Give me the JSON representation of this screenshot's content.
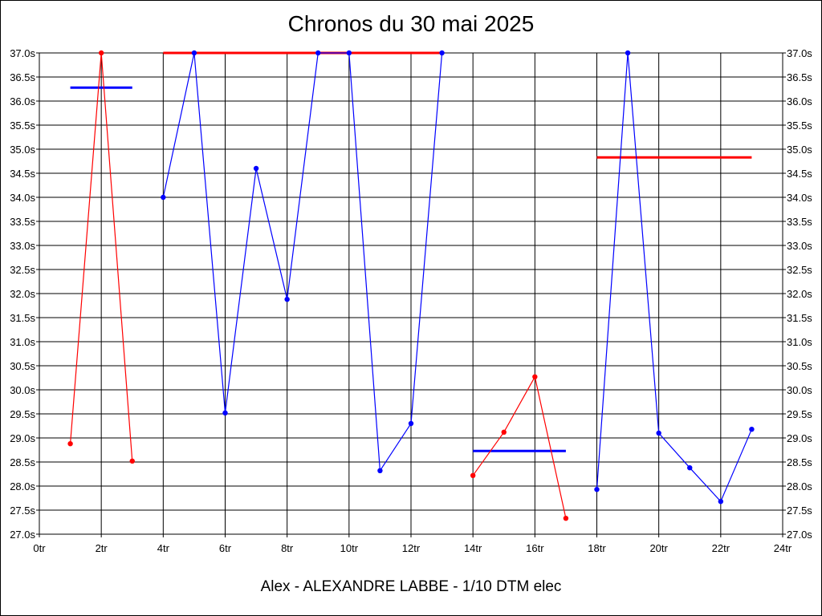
{
  "chart_data": {
    "type": "line",
    "title": "Chronos du 30 mai 2025",
    "subtitle": "Alex - ALEXANDRE LABBE - 1/10 DTM elec",
    "xlim": [
      0,
      24
    ],
    "ylim": [
      27.0,
      37.0
    ],
    "grid": true,
    "x_tick_labels": [
      "0tr",
      "2tr",
      "4tr",
      "6tr",
      "8tr",
      "10tr",
      "12tr",
      "14tr",
      "16tr",
      "18tr",
      "20tr",
      "22tr",
      "24tr"
    ],
    "y_tick_labels": [
      "27.0s",
      "27.5s",
      "28.0s",
      "28.5s",
      "29.0s",
      "29.5s",
      "30.0s",
      "30.5s",
      "31.0s",
      "31.5s",
      "32.0s",
      "32.5s",
      "33.0s",
      "33.5s",
      "34.0s",
      "34.5s",
      "35.0s",
      "35.5s",
      "36.0s",
      "36.5s",
      "37.0s"
    ],
    "series": [
      {
        "color": "#ff0000",
        "x": [
          1,
          2,
          3
        ],
        "values": [
          28.88,
          37.0,
          28.52
        ]
      },
      {
        "color": "#0000ff",
        "x": [
          4,
          5,
          6,
          7,
          8,
          9,
          10,
          11,
          12,
          13
        ],
        "values": [
          34.0,
          37.0,
          29.52,
          34.6,
          31.88,
          37.0,
          37.0,
          28.32,
          29.3,
          37.0
        ]
      },
      {
        "color": "#ff0000",
        "x": [
          14,
          15,
          16,
          17
        ],
        "values": [
          28.22,
          29.12,
          30.27,
          27.33
        ]
      },
      {
        "color": "#0000ff",
        "x": [
          18,
          19,
          20,
          21,
          22,
          23
        ],
        "values": [
          27.93,
          37.0,
          29.1,
          28.38,
          27.68,
          29.18
        ]
      }
    ],
    "average_lines": [
      {
        "color": "#0000ff",
        "x": [
          1,
          3
        ],
        "value": 36.28
      },
      {
        "color": "#ff0000",
        "x": [
          4,
          13
        ],
        "value": 37.0
      },
      {
        "color": "#0000ff",
        "x": [
          14,
          17
        ],
        "value": 28.73
      },
      {
        "color": "#ff0000",
        "x": [
          18,
          23
        ],
        "value": 34.83
      }
    ]
  }
}
